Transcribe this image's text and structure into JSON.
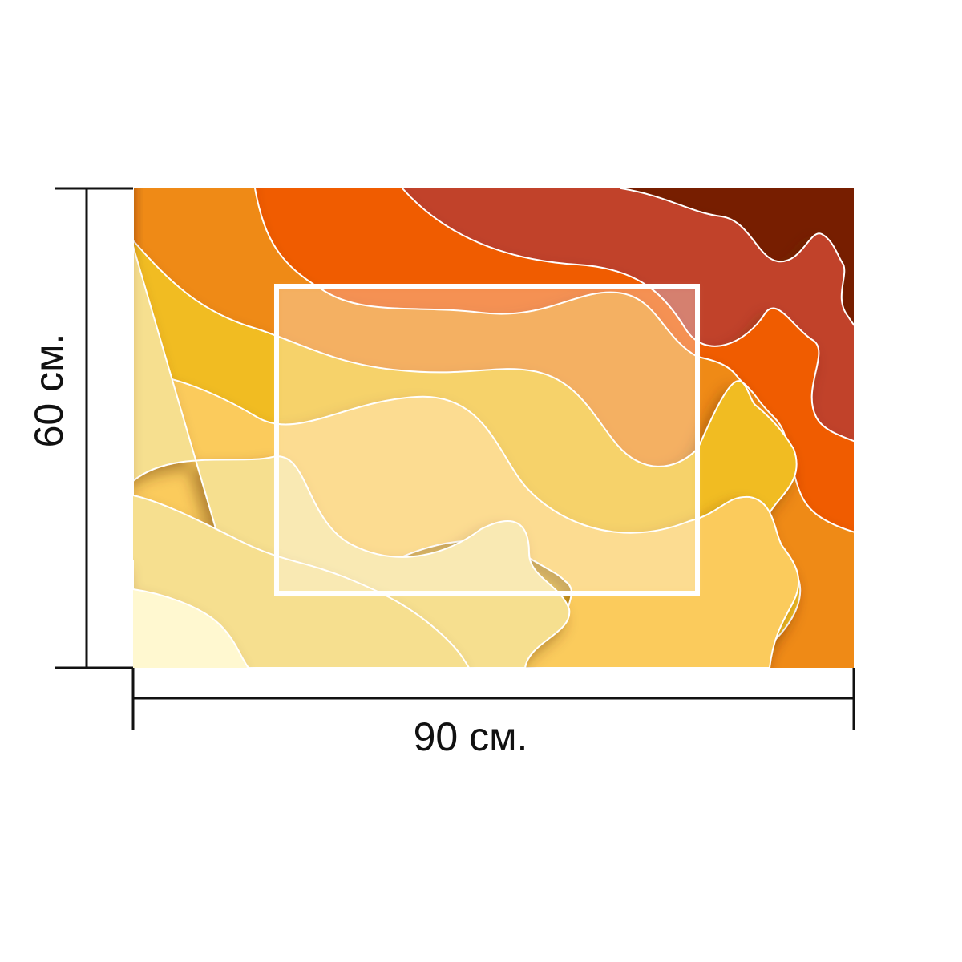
{
  "dimensions": {
    "width_label": "90 см.",
    "height_label": "60 см."
  },
  "artwork": {
    "colors": [
      "#FFF8D0",
      "#F6DF8F",
      "#FBCB5C",
      "#F1BC20",
      "#EF8A13",
      "#F05B05",
      "#C1432A",
      "#771E00"
    ],
    "frame_color": "#ffffff",
    "lines_color": "#ffffff"
  }
}
